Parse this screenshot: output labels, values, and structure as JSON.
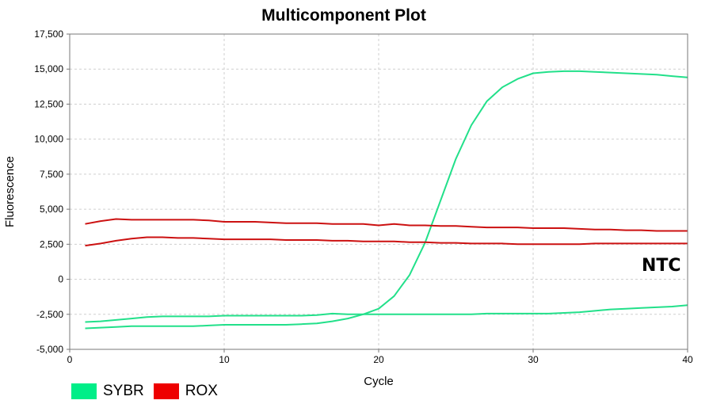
{
  "chart_data": {
    "type": "line",
    "title": "Multicomponent Plot",
    "xlabel": "Cycle",
    "ylabel": "Fluorescence",
    "xlim": [
      0,
      40
    ],
    "ylim": [
      -5000,
      17500
    ],
    "xticks": [
      "0",
      "10",
      "20",
      "30",
      "40"
    ],
    "yticks": [
      "-5,000",
      "-2,500",
      "0",
      "2,500",
      "5,000",
      "7,500",
      "10,000",
      "12,500",
      "15,000",
      "17,500"
    ],
    "grid": true,
    "legend_position": "bottom-left",
    "annotation": "NTC",
    "legend": [
      {
        "label": "SYBR",
        "color": "#00ee88"
      },
      {
        "label": "ROX",
        "color": "#ee0000"
      }
    ],
    "series": [
      {
        "dye": "SYBR",
        "color": "#22e08a",
        "x": [
          1,
          2,
          3,
          4,
          5,
          6,
          7,
          8,
          9,
          10,
          11,
          12,
          13,
          14,
          15,
          16,
          17,
          18,
          19,
          20,
          21,
          22,
          23,
          24,
          25,
          26,
          27,
          28,
          29,
          30,
          31,
          32,
          33,
          34,
          35,
          36,
          37,
          38,
          39,
          40
        ],
        "y": [
          -3050,
          -3000,
          -2900,
          -2800,
          -2700,
          -2650,
          -2650,
          -2650,
          -2650,
          -2600,
          -2600,
          -2600,
          -2600,
          -2600,
          -2600,
          -2550,
          -2450,
          -2500,
          -2500,
          -2500,
          -2500,
          -2500,
          -2500,
          -2500,
          -2500,
          -2500,
          -2450,
          -2450,
          -2450,
          -2450,
          -2450,
          -2400,
          -2350,
          -2250,
          -2150,
          -2100,
          -2050,
          -2000,
          -1950,
          -1850
        ]
      },
      {
        "dye": "SYBR",
        "color": "#22e08a",
        "x": [
          1,
          2,
          3,
          4,
          5,
          6,
          7,
          8,
          9,
          10,
          11,
          12,
          13,
          14,
          15,
          16,
          17,
          18,
          19,
          20,
          21,
          22,
          23,
          24,
          25,
          26,
          27,
          28,
          29,
          30,
          31,
          32,
          33,
          34,
          35,
          36,
          37,
          38,
          39,
          40
        ],
        "y": [
          -3500,
          -3450,
          -3400,
          -3350,
          -3350,
          -3350,
          -3350,
          -3350,
          -3300,
          -3250,
          -3250,
          -3250,
          -3250,
          -3250,
          -3200,
          -3150,
          -3000,
          -2800,
          -2500,
          -2100,
          -1200,
          300,
          2600,
          5600,
          8600,
          11000,
          12700,
          13700,
          14300,
          14700,
          14800,
          14850,
          14850,
          14800,
          14750,
          14700,
          14650,
          14600,
          14500,
          14400
        ]
      },
      {
        "dye": "ROX",
        "color": "#cc1111",
        "x": [
          1,
          2,
          3,
          4,
          5,
          6,
          7,
          8,
          9,
          10,
          11,
          12,
          13,
          14,
          15,
          16,
          17,
          18,
          19,
          20,
          21,
          22,
          23,
          24,
          25,
          26,
          27,
          28,
          29,
          30,
          31,
          32,
          33,
          34,
          35,
          36,
          37,
          38,
          39,
          40
        ],
        "y": [
          3950,
          4150,
          4300,
          4250,
          4250,
          4250,
          4250,
          4250,
          4200,
          4100,
          4100,
          4100,
          4050,
          4000,
          4000,
          4000,
          3950,
          3950,
          3950,
          3850,
          3950,
          3850,
          3850,
          3800,
          3800,
          3750,
          3700,
          3700,
          3700,
          3650,
          3650,
          3650,
          3600,
          3550,
          3550,
          3500,
          3500,
          3450,
          3450,
          3450
        ]
      },
      {
        "dye": "ROX",
        "color": "#cc1111",
        "x": [
          1,
          2,
          3,
          4,
          5,
          6,
          7,
          8,
          9,
          10,
          11,
          12,
          13,
          14,
          15,
          16,
          17,
          18,
          19,
          20,
          21,
          22,
          23,
          24,
          25,
          26,
          27,
          28,
          29,
          30,
          31,
          32,
          33,
          34,
          35,
          36,
          37,
          38,
          39,
          40
        ],
        "y": [
          2400,
          2550,
          2750,
          2900,
          3000,
          3000,
          2950,
          2950,
          2900,
          2850,
          2850,
          2850,
          2850,
          2800,
          2800,
          2800,
          2750,
          2750,
          2700,
          2700,
          2700,
          2650,
          2650,
          2600,
          2600,
          2550,
          2550,
          2550,
          2500,
          2500,
          2500,
          2500,
          2500,
          2550,
          2550,
          2550,
          2550,
          2550,
          2550,
          2550
        ]
      }
    ]
  }
}
